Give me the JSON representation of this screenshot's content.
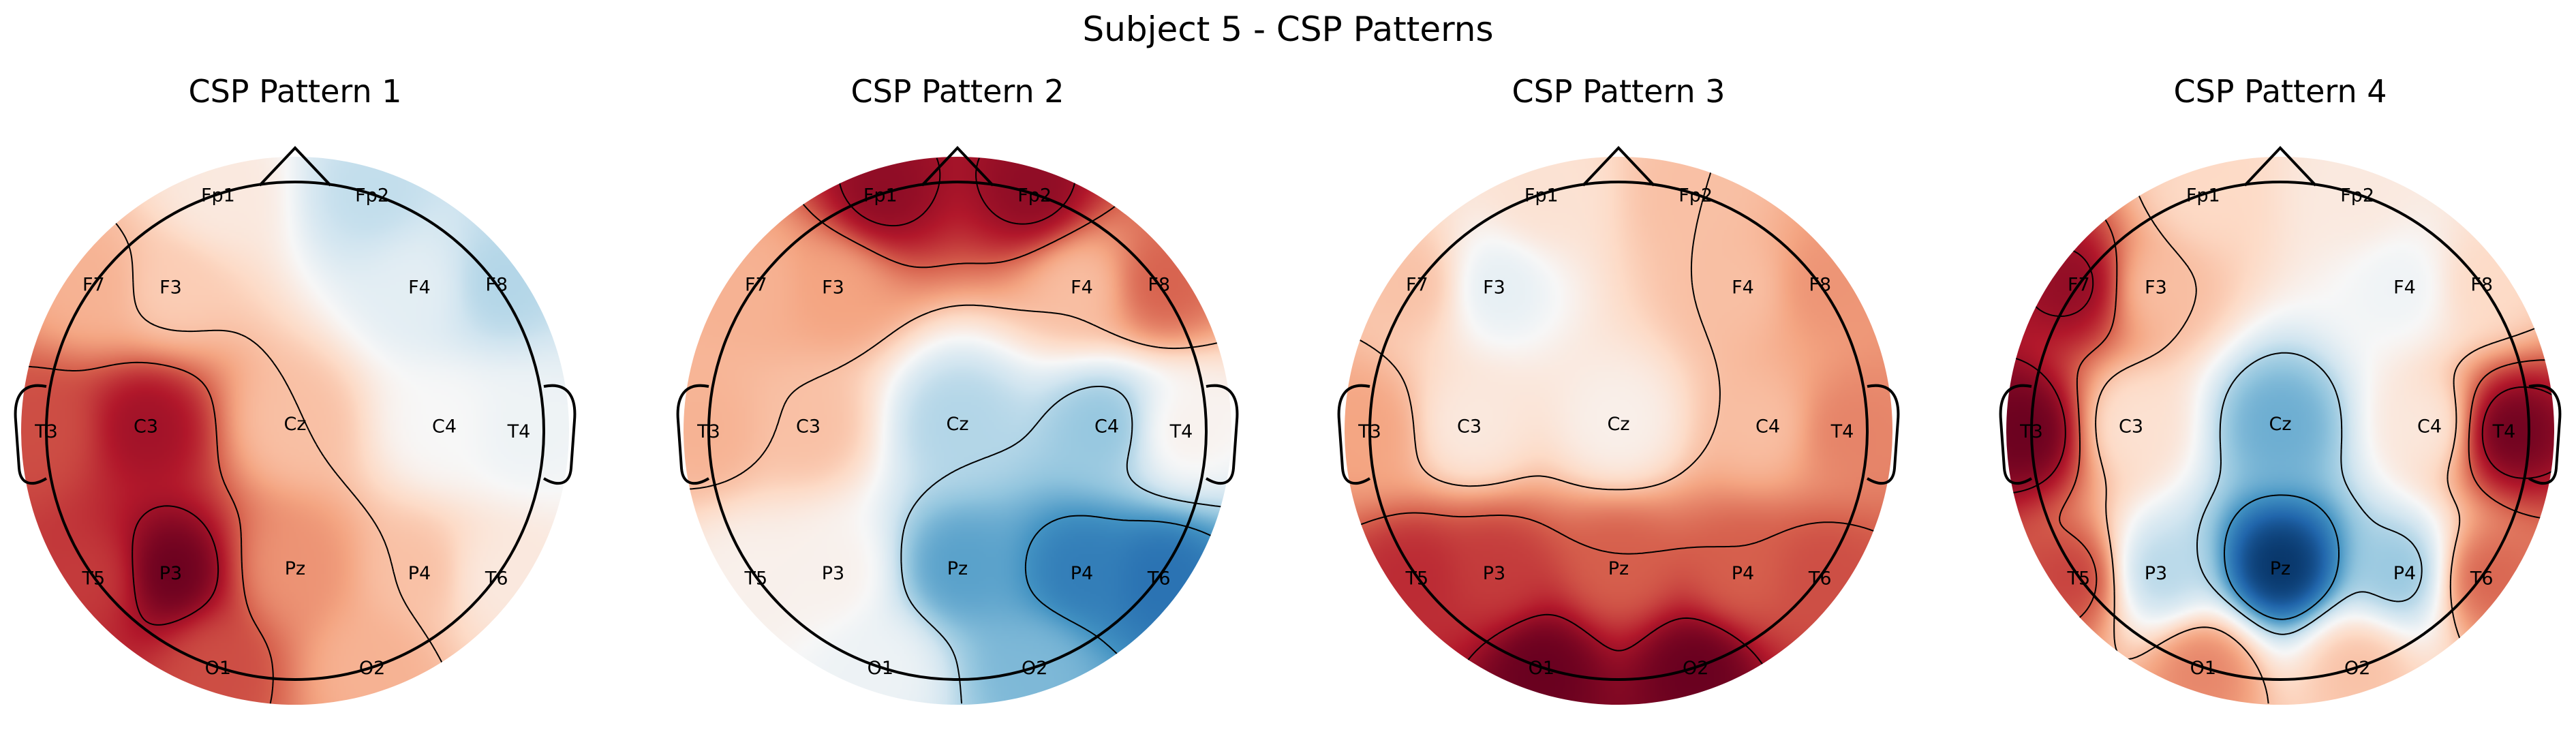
{
  "figure": {
    "title": "Subject 5 - CSP Patterns"
  },
  "colormap": {
    "name": "RdBu_r",
    "stops": [
      "#053061",
      "#2166ac",
      "#4393c3",
      "#92c5de",
      "#d1e5f0",
      "#f7f7f7",
      "#fddbc7",
      "#f4a582",
      "#d6604d",
      "#b2182b",
      "#67001f"
    ]
  },
  "chart_data": [
    {
      "type": "heatmap",
      "title": "CSP Pattern 1",
      "channels": [
        {
          "name": "Fp1",
          "value": 0.1
        },
        {
          "name": "Fp2",
          "value": -0.25
        },
        {
          "name": "F7",
          "value": 0.35
        },
        {
          "name": "F3",
          "value": 0.25
        },
        {
          "name": "F4",
          "value": -0.1
        },
        {
          "name": "F8",
          "value": -0.3
        },
        {
          "name": "T3",
          "value": 0.65
        },
        {
          "name": "C3",
          "value": 0.85
        },
        {
          "name": "Cz",
          "value": 0.3
        },
        {
          "name": "C4",
          "value": 0.0
        },
        {
          "name": "T4",
          "value": -0.05
        },
        {
          "name": "T5",
          "value": 0.7
        },
        {
          "name": "P3",
          "value": 1.0
        },
        {
          "name": "Pz",
          "value": 0.45
        },
        {
          "name": "P4",
          "value": 0.3
        },
        {
          "name": "T6",
          "value": 0.1
        },
        {
          "name": "O1",
          "value": 0.65
        },
        {
          "name": "O2",
          "value": 0.35
        }
      ]
    },
    {
      "type": "heatmap",
      "title": "CSP Pattern 2",
      "channels": [
        {
          "name": "Fp1",
          "value": 0.9
        },
        {
          "name": "Fp2",
          "value": 0.9
        },
        {
          "name": "F7",
          "value": 0.35
        },
        {
          "name": "F3",
          "value": 0.4
        },
        {
          "name": "F4",
          "value": 0.3
        },
        {
          "name": "F8",
          "value": 0.6
        },
        {
          "name": "T3",
          "value": 0.35
        },
        {
          "name": "C3",
          "value": 0.3
        },
        {
          "name": "Cz",
          "value": -0.3
        },
        {
          "name": "C4",
          "value": -0.4
        },
        {
          "name": "T4",
          "value": 0.05
        },
        {
          "name": "T5",
          "value": 0.05
        },
        {
          "name": "P3",
          "value": 0.05
        },
        {
          "name": "Pz",
          "value": -0.55
        },
        {
          "name": "P4",
          "value": -0.7
        },
        {
          "name": "T6",
          "value": -0.75
        },
        {
          "name": "O1",
          "value": -0.05
        },
        {
          "name": "O2",
          "value": -0.45
        }
      ]
    },
    {
      "type": "heatmap",
      "title": "CSP Pattern 3",
      "channels": [
        {
          "name": "Fp1",
          "value": 0.15
        },
        {
          "name": "Fp2",
          "value": 0.3
        },
        {
          "name": "F7",
          "value": 0.3
        },
        {
          "name": "F3",
          "value": -0.1
        },
        {
          "name": "F4",
          "value": 0.3
        },
        {
          "name": "F8",
          "value": 0.45
        },
        {
          "name": "T3",
          "value": 0.4
        },
        {
          "name": "C3",
          "value": 0.1
        },
        {
          "name": "Cz",
          "value": 0.05
        },
        {
          "name": "C4",
          "value": 0.3
        },
        {
          "name": "T4",
          "value": 0.5
        },
        {
          "name": "T5",
          "value": 0.75
        },
        {
          "name": "P3",
          "value": 0.7
        },
        {
          "name": "Pz",
          "value": 0.6
        },
        {
          "name": "P4",
          "value": 0.6
        },
        {
          "name": "T6",
          "value": 0.65
        },
        {
          "name": "O1",
          "value": 1.0
        },
        {
          "name": "O2",
          "value": 1.0
        }
      ]
    },
    {
      "type": "heatmap",
      "title": "CSP Pattern 4",
      "channels": [
        {
          "name": "Fp1",
          "value": 0.2
        },
        {
          "name": "Fp2",
          "value": 0.1
        },
        {
          "name": "F7",
          "value": 0.9
        },
        {
          "name": "F3",
          "value": 0.3
        },
        {
          "name": "F4",
          "value": -0.05
        },
        {
          "name": "F8",
          "value": 0.2
        },
        {
          "name": "T3",
          "value": 1.0
        },
        {
          "name": "C3",
          "value": 0.15
        },
        {
          "name": "Cz",
          "value": -0.5
        },
        {
          "name": "C4",
          "value": 0.1
        },
        {
          "name": "T4",
          "value": 1.0
        },
        {
          "name": "T5",
          "value": 0.7
        },
        {
          "name": "P3",
          "value": -0.3
        },
        {
          "name": "Pz",
          "value": -1.0
        },
        {
          "name": "P4",
          "value": -0.4
        },
        {
          "name": "T6",
          "value": 0.6
        },
        {
          "name": "O1",
          "value": 0.5
        },
        {
          "name": "O2",
          "value": 0.3
        }
      ]
    }
  ]
}
